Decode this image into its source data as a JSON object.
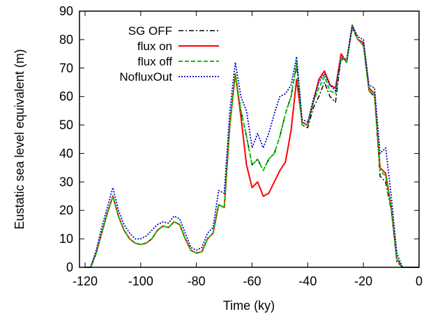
{
  "chart_data": {
    "type": "line",
    "title": "",
    "xlabel": "Time (ky)",
    "ylabel": "Eustatic sea level equivalent (m)",
    "xlim": [
      -122,
      0
    ],
    "ylim": [
      0,
      90
    ],
    "xticks": [
      -120,
      -100,
      -80,
      -60,
      -40,
      -20,
      0
    ],
    "yticks": [
      0,
      10,
      20,
      30,
      40,
      50,
      60,
      70,
      80,
      90
    ],
    "xtick_labels": [
      "-120",
      "-100",
      "-80",
      "-60",
      "-40",
      "-20",
      "0"
    ],
    "ytick_labels": [
      "0",
      "10",
      "20",
      "30",
      "40",
      "50",
      "60",
      "70",
      "80",
      "90"
    ],
    "grid": false,
    "legend_position": "top-left",
    "series": [
      {
        "name": "SG OFF",
        "color": "#000000",
        "dash": "dash-dot",
        "points": [
          [
            -120,
            0
          ],
          [
            -118,
            0
          ],
          [
            -116,
            5
          ],
          [
            -114,
            12
          ],
          [
            -112,
            19
          ],
          [
            -110,
            25
          ],
          [
            -108,
            18
          ],
          [
            -106,
            13
          ],
          [
            -104,
            10
          ],
          [
            -102,
            8.5
          ],
          [
            -100,
            8
          ],
          [
            -98,
            8.5
          ],
          [
            -96,
            10
          ],
          [
            -94,
            13
          ],
          [
            -92,
            14.5
          ],
          [
            -90,
            14
          ],
          [
            -88,
            16
          ],
          [
            -86,
            15
          ],
          [
            -84,
            10
          ],
          [
            -82,
            6
          ],
          [
            -80,
            5
          ],
          [
            -78,
            5.5
          ],
          [
            -76,
            10
          ],
          [
            -74,
            12
          ],
          [
            -72,
            22
          ],
          [
            -70,
            21
          ],
          [
            -68,
            50
          ],
          [
            -66,
            68
          ],
          [
            -64,
            55
          ],
          [
            -62,
            46
          ],
          [
            -60,
            36
          ],
          [
            -58,
            38
          ],
          [
            -56,
            34
          ],
          [
            -54,
            38
          ],
          [
            -52,
            40
          ],
          [
            -50,
            46
          ],
          [
            -48,
            54
          ],
          [
            -46,
            60
          ],
          [
            -44,
            71
          ],
          [
            -42,
            50
          ],
          [
            -40,
            49
          ],
          [
            -38,
            56
          ],
          [
            -36,
            60
          ],
          [
            -34,
            65
          ],
          [
            -32,
            60
          ],
          [
            -30,
            58
          ],
          [
            -28,
            74
          ],
          [
            -26,
            72
          ],
          [
            -24,
            84
          ],
          [
            -22,
            80
          ],
          [
            -20,
            78
          ],
          [
            -18,
            62
          ],
          [
            -16,
            60
          ],
          [
            -14,
            32
          ],
          [
            -12,
            30
          ],
          [
            -10,
            20
          ],
          [
            -8,
            2
          ],
          [
            -6,
            0
          ],
          [
            -2,
            0
          ],
          [
            0,
            0
          ]
        ]
      },
      {
        "name": "flux on",
        "color": "#ff0000",
        "dash": "solid",
        "points": [
          [
            -120,
            0
          ],
          [
            -118,
            0
          ],
          [
            -116,
            5
          ],
          [
            -114,
            12
          ],
          [
            -112,
            19
          ],
          [
            -110,
            25
          ],
          [
            -108,
            18
          ],
          [
            -106,
            13
          ],
          [
            -104,
            10
          ],
          [
            -102,
            8.5
          ],
          [
            -100,
            8
          ],
          [
            -98,
            8.5
          ],
          [
            -96,
            10
          ],
          [
            -94,
            13
          ],
          [
            -92,
            14.5
          ],
          [
            -90,
            14
          ],
          [
            -88,
            16
          ],
          [
            -86,
            15
          ],
          [
            -84,
            10
          ],
          [
            -82,
            6
          ],
          [
            -80,
            5
          ],
          [
            -78,
            5.5
          ],
          [
            -76,
            10
          ],
          [
            -74,
            12
          ],
          [
            -72,
            22
          ],
          [
            -70,
            21
          ],
          [
            -68,
            50
          ],
          [
            -66,
            68
          ],
          [
            -64,
            53
          ],
          [
            -62,
            36
          ],
          [
            -60,
            28
          ],
          [
            -58,
            30
          ],
          [
            -56,
            25
          ],
          [
            -54,
            26
          ],
          [
            -52,
            30
          ],
          [
            -50,
            34
          ],
          [
            -48,
            37
          ],
          [
            -46,
            48
          ],
          [
            -44,
            66
          ],
          [
            -42,
            51
          ],
          [
            -40,
            50
          ],
          [
            -38,
            58
          ],
          [
            -36,
            66
          ],
          [
            -34,
            69
          ],
          [
            -32,
            64
          ],
          [
            -30,
            63
          ],
          [
            -28,
            75
          ],
          [
            -26,
            72
          ],
          [
            -24,
            85
          ],
          [
            -22,
            80
          ],
          [
            -20,
            79
          ],
          [
            -18,
            63
          ],
          [
            -16,
            61
          ],
          [
            -14,
            35
          ],
          [
            -12,
            33
          ],
          [
            -10,
            21
          ],
          [
            -8,
            3
          ],
          [
            -6,
            0
          ],
          [
            -2,
            0
          ],
          [
            0,
            0
          ]
        ]
      },
      {
        "name": "flux off",
        "color": "#00cc00",
        "dash": "dashed",
        "points": [
          [
            -120,
            0
          ],
          [
            -118,
            0
          ],
          [
            -116,
            5
          ],
          [
            -114,
            12
          ],
          [
            -112,
            19
          ],
          [
            -110,
            25
          ],
          [
            -108,
            18
          ],
          [
            -106,
            13
          ],
          [
            -104,
            10
          ],
          [
            -102,
            8.5
          ],
          [
            -100,
            8
          ],
          [
            -98,
            8.5
          ],
          [
            -96,
            10
          ],
          [
            -94,
            13
          ],
          [
            -92,
            14.5
          ],
          [
            -90,
            14
          ],
          [
            -88,
            16
          ],
          [
            -86,
            15
          ],
          [
            -84,
            10
          ],
          [
            -82,
            6
          ],
          [
            -80,
            5
          ],
          [
            -78,
            5.5
          ],
          [
            -76,
            10
          ],
          [
            -74,
            12
          ],
          [
            -72,
            22
          ],
          [
            -70,
            21
          ],
          [
            -68,
            50
          ],
          [
            -66,
            68
          ],
          [
            -64,
            55
          ],
          [
            -62,
            46
          ],
          [
            -60,
            36
          ],
          [
            -58,
            38
          ],
          [
            -56,
            34
          ],
          [
            -54,
            38
          ],
          [
            -52,
            40
          ],
          [
            -50,
            46
          ],
          [
            -48,
            54
          ],
          [
            -46,
            60
          ],
          [
            -44,
            72
          ],
          [
            -42,
            50
          ],
          [
            -40,
            50
          ],
          [
            -38,
            58
          ],
          [
            -36,
            63
          ],
          [
            -34,
            67
          ],
          [
            -32,
            62
          ],
          [
            -30,
            61
          ],
          [
            -28,
            74
          ],
          [
            -26,
            72
          ],
          [
            -24,
            85
          ],
          [
            -22,
            80
          ],
          [
            -20,
            78
          ],
          [
            -18,
            62
          ],
          [
            -16,
            61
          ],
          [
            -14,
            34
          ],
          [
            -12,
            32
          ],
          [
            -10,
            21
          ],
          [
            -8,
            3
          ],
          [
            -6,
            0
          ],
          [
            -2,
            0
          ],
          [
            0,
            0
          ]
        ]
      },
      {
        "name": "NofluxOut",
        "color": "#0000cc",
        "dash": "dotted",
        "points": [
          [
            -120,
            0
          ],
          [
            -118,
            0
          ],
          [
            -116,
            6
          ],
          [
            -114,
            14
          ],
          [
            -112,
            21
          ],
          [
            -110,
            28
          ],
          [
            -108,
            20
          ],
          [
            -106,
            15
          ],
          [
            -104,
            12
          ],
          [
            -102,
            10
          ],
          [
            -100,
            10
          ],
          [
            -98,
            11
          ],
          [
            -96,
            13
          ],
          [
            -94,
            15
          ],
          [
            -92,
            16
          ],
          [
            -90,
            15.5
          ],
          [
            -88,
            18
          ],
          [
            -86,
            17
          ],
          [
            -84,
            12
          ],
          [
            -82,
            7
          ],
          [
            -80,
            6
          ],
          [
            -78,
            7
          ],
          [
            -76,
            12
          ],
          [
            -74,
            14
          ],
          [
            -72,
            27
          ],
          [
            -70,
            26
          ],
          [
            -68,
            55
          ],
          [
            -66,
            72
          ],
          [
            -64,
            60
          ],
          [
            -62,
            55
          ],
          [
            -60,
            42
          ],
          [
            -58,
            47
          ],
          [
            -56,
            42
          ],
          [
            -54,
            47
          ],
          [
            -52,
            54
          ],
          [
            -50,
            60
          ],
          [
            -48,
            61
          ],
          [
            -46,
            64
          ],
          [
            -44,
            74
          ],
          [
            -42,
            52
          ],
          [
            -40,
            51
          ],
          [
            -38,
            59
          ],
          [
            -36,
            65
          ],
          [
            -34,
            68
          ],
          [
            -32,
            64
          ],
          [
            -30,
            62
          ],
          [
            -28,
            73
          ],
          [
            -26,
            73
          ],
          [
            -24,
            85
          ],
          [
            -22,
            81
          ],
          [
            -20,
            80
          ],
          [
            -18,
            64
          ],
          [
            -16,
            63
          ],
          [
            -14,
            40
          ],
          [
            -12,
            42
          ],
          [
            -10,
            25
          ],
          [
            -8,
            5
          ],
          [
            -6,
            0
          ],
          [
            -2,
            0
          ],
          [
            0,
            0
          ]
        ]
      }
    ]
  }
}
